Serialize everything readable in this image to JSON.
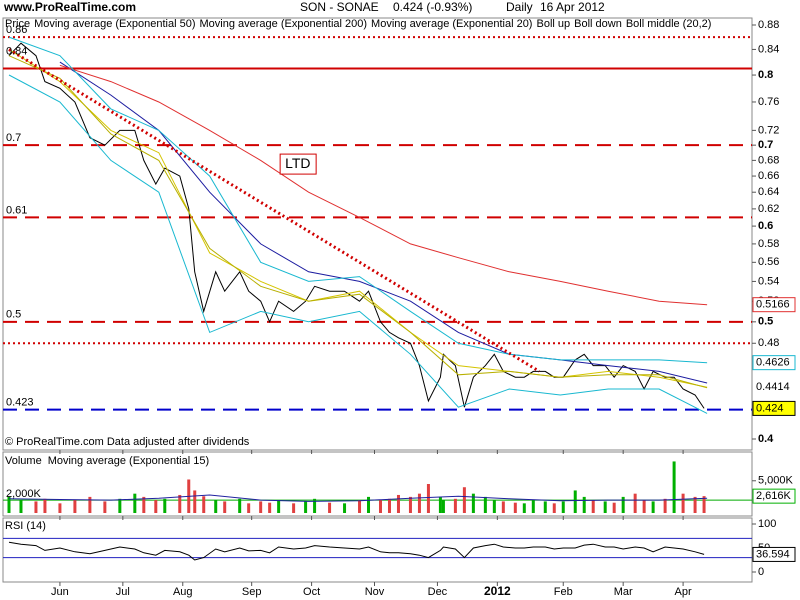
{
  "site": "www.ProRealTime.com",
  "header": {
    "symbol": "SON - SONAE",
    "quote": "0.424 (-0.93%)",
    "period": "Daily",
    "date": "16 Apr 2012"
  },
  "chart_data": [
    {
      "type": "line",
      "ylog": true,
      "ylim": [
        0.4,
        0.88
      ],
      "xlim": [
        0,
        250
      ],
      "yticks": [
        0.88,
        0.84,
        0.8,
        0.76,
        0.72,
        0.7,
        0.68,
        0.66,
        0.64,
        0.62,
        0.6,
        0.58,
        0.56,
        0.54,
        0.52,
        0.5,
        0.48,
        0.4
      ],
      "xticks": [
        {
          "value": 19,
          "label": "Jun"
        },
        {
          "value": 40,
          "label": "Jul"
        },
        {
          "value": 60,
          "label": "Aug"
        },
        {
          "value": 83,
          "label": "Sep"
        },
        {
          "value": 103,
          "label": "Oct"
        },
        {
          "value": 124,
          "label": "Nov"
        },
        {
          "value": 145,
          "label": "Dec"
        },
        {
          "value": 165,
          "label": "2012"
        },
        {
          "value": 187,
          "label": "Feb"
        },
        {
          "value": 207,
          "label": "Mar"
        },
        {
          "value": 227,
          "label": "Apr"
        }
      ],
      "series": [
        {
          "name": "Price",
          "color": "#000000",
          "box": "fill",
          "x": [
            2,
            6,
            11,
            14,
            19,
            24,
            29,
            34,
            39,
            44,
            47,
            51,
            54,
            59,
            62,
            64,
            67,
            71,
            74,
            79,
            82,
            86,
            89,
            92,
            97,
            101,
            104,
            109,
            114,
            119,
            122,
            126,
            129,
            132,
            136,
            139,
            142,
            146,
            147,
            151,
            154,
            157,
            161,
            164,
            167,
            171,
            174,
            177,
            181,
            184,
            187,
            191,
            194,
            197,
            201,
            204,
            207,
            211,
            214,
            217,
            221,
            224,
            227,
            231,
            234
          ],
          "values": [
            0.83,
            0.85,
            0.83,
            0.79,
            0.78,
            0.76,
            0.71,
            0.7,
            0.72,
            0.72,
            0.68,
            0.65,
            0.67,
            0.66,
            0.62,
            0.55,
            0.51,
            0.55,
            0.53,
            0.55,
            0.53,
            0.52,
            0.5,
            0.52,
            0.51,
            0.52,
            0.535,
            0.53,
            0.53,
            0.52,
            0.53,
            0.5,
            0.49,
            0.485,
            0.48,
            0.46,
            0.43,
            0.45,
            0.47,
            0.46,
            0.425,
            0.45,
            0.46,
            0.47,
            0.455,
            0.45,
            0.45,
            0.455,
            0.455,
            0.45,
            0.45,
            0.465,
            0.47,
            0.46,
            0.46,
            0.45,
            0.46,
            0.455,
            0.44,
            0.455,
            0.45,
            0.45,
            0.44,
            0.435,
            0.424
          ]
        },
        {
          "name": "Moving average (Exponential 50)",
          "color": "#1c1ca0",
          "x": [
            2,
            19,
            36,
            52,
            69,
            86,
            102,
            119,
            136,
            152,
            169,
            186,
            202,
            219,
            235
          ],
          "values": [
            null,
            0.82,
            0.77,
            0.72,
            0.64,
            0.58,
            0.55,
            0.54,
            0.52,
            0.49,
            0.47,
            0.465,
            0.46,
            0.455,
            0.445
          ]
        },
        {
          "name": "Moving average (Exponential 200)",
          "color": "#e03030",
          "box": "outline",
          "x": [
            2,
            19,
            36,
            52,
            69,
            86,
            102,
            119,
            136,
            152,
            169,
            186,
            202,
            219,
            235
          ],
          "values": [
            null,
            0.815,
            0.79,
            0.76,
            0.72,
            0.68,
            0.64,
            0.61,
            0.58,
            0.565,
            0.55,
            0.54,
            0.53,
            0.52,
            0.5166
          ]
        },
        {
          "name": "Moving average (Exponential 20)",
          "color": "#d4c400",
          "box": "text",
          "x": [
            2,
            19,
            36,
            52,
            69,
            86,
            102,
            119,
            136,
            152,
            169,
            186,
            202,
            219,
            235
          ],
          "values": [
            0.84,
            0.79,
            0.72,
            0.69,
            0.57,
            0.54,
            0.52,
            0.53,
            0.49,
            0.46,
            0.455,
            0.45,
            0.455,
            0.45,
            0.4414
          ]
        },
        {
          "name": "Boll up",
          "color": "#19b8d0",
          "box": "outline",
          "x": [
            2,
            19,
            36,
            52,
            69,
            86,
            102,
            119,
            136,
            152,
            169,
            186,
            202,
            219,
            235
          ],
          "values": [
            0.86,
            0.83,
            0.75,
            0.72,
            0.66,
            0.56,
            0.54,
            0.545,
            0.51,
            0.48,
            0.47,
            0.465,
            0.465,
            0.465,
            0.4626
          ]
        },
        {
          "name": "Boll down",
          "color": "#19b8d0",
          "x": [
            2,
            19,
            36,
            52,
            69,
            86,
            102,
            119,
            136,
            152,
            169,
            186,
            202,
            219,
            235
          ],
          "values": [
            0.8,
            0.76,
            0.68,
            0.64,
            0.49,
            0.51,
            0.5,
            0.51,
            0.47,
            0.425,
            0.44,
            0.435,
            0.44,
            0.44,
            0.42
          ]
        },
        {
          "name": "Boll middle (20,2)",
          "color": "#b8b000",
          "x": [
            2,
            19,
            36,
            52,
            69,
            86,
            102,
            119,
            136,
            152,
            169,
            186,
            202,
            219,
            235
          ],
          "values": [
            0.83,
            0.795,
            0.715,
            0.68,
            0.575,
            0.535,
            0.52,
            0.527,
            0.49,
            0.452,
            0.455,
            0.45,
            0.452,
            0.452,
            0.441
          ]
        }
      ],
      "levels": [
        {
          "value": 0.86,
          "style": "dotted",
          "color": "#d00000",
          "labeled": true
        },
        {
          "value": 0.81,
          "style": "solid",
          "color": "#d00000",
          "labeled": false
        },
        {
          "value": 0.7,
          "style": "dashed",
          "color": "#d00000",
          "labeled": true
        },
        {
          "value": 0.61,
          "style": "dashed",
          "color": "#d00000",
          "labeled": true
        },
        {
          "value": 0.5,
          "style": "dashed",
          "color": "#d00000",
          "labeled": true
        },
        {
          "value": 0.48,
          "style": "dotted",
          "color": "#d00000",
          "labeled": false
        },
        {
          "value": 0.423,
          "style": "dashed",
          "color": "#0000cc",
          "labeled": true
        }
      ],
      "trendline": {
        "label": "LTD",
        "x": [
          2,
          179
        ],
        "values": [
          0.84,
          0.455
        ],
        "color": "#d00000"
      },
      "footnote": "© ProRealTime.com  Data adjusted after dividends"
    },
    {
      "type": "bar",
      "title": "Volume",
      "ylim": [
        0,
        9000
      ],
      "yticks": [
        {
          "value": 5000,
          "label": "5,000K"
        }
      ],
      "levels": [
        {
          "value": 2000,
          "label": "2,000K",
          "color": "#00aa00"
        }
      ],
      "series": [
        {
          "name": "Volume",
          "color": "#e04040",
          "up_color": "#00b000",
          "last_label": "2,616K",
          "values": [
            2500,
            2000,
            1800,
            2200,
            1500,
            2000,
            2500,
            1800,
            2200,
            3000,
            2500,
            2000,
            2200,
            2800,
            5200,
            3500,
            2600,
            2000,
            1800,
            2200,
            1500,
            1800,
            1600,
            2000,
            1500,
            1800,
            2200,
            1600,
            1500,
            2000,
            2500,
            2000,
            2200,
            2800,
            2500,
            3000,
            4500,
            2500,
            2000,
            2200,
            4000,
            3000,
            2500,
            2000,
            1800,
            1600,
            1500,
            2000,
            1800,
            1500,
            1800,
            3500,
            2500,
            2000,
            1800,
            1600,
            2500,
            3000,
            2000,
            1800,
            2200,
            8000,
            3000,
            2500,
            2616
          ]
        },
        {
          "name": "Moving average (Exponential 15)",
          "color": "#2020a0",
          "x": [
            2,
            19,
            36,
            52,
            69,
            86,
            102,
            119,
            136,
            152,
            169,
            186,
            202,
            219,
            235
          ],
          "values": [
            2200,
            2100,
            2000,
            2300,
            2800,
            2000,
            1800,
            1900,
            2300,
            2600,
            2200,
            1900,
            2000,
            2000,
            2300
          ]
        }
      ]
    },
    {
      "type": "line",
      "title": "RSI (14)",
      "ylim": [
        0,
        100
      ],
      "yticks": [
        100,
        50,
        0
      ],
      "levels": [
        {
          "value": 70,
          "color": "#2020c0"
        },
        {
          "value": 30,
          "color": "#2020c0"
        }
      ],
      "series": [
        {
          "color": "#000000",
          "values": [
            62,
            58,
            55,
            45,
            50,
            42,
            38,
            45,
            52,
            48,
            40,
            35,
            45,
            42,
            35,
            25,
            30,
            48,
            42,
            50,
            44,
            45,
            40,
            52,
            48,
            50,
            55,
            52,
            50,
            48,
            52,
            42,
            40,
            40,
            38,
            35,
            30,
            45,
            52,
            48,
            30,
            50,
            55,
            58,
            52,
            50,
            50,
            52,
            52,
            48,
            50,
            50,
            56,
            58,
            52,
            52,
            48,
            52,
            50,
            42,
            52,
            50,
            48,
            42,
            36.594
          ]
        }
      ]
    }
  ]
}
